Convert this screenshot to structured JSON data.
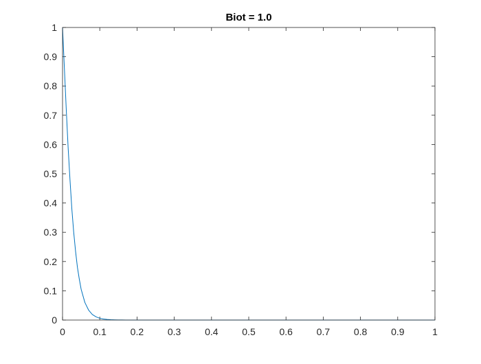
{
  "chart_data": {
    "type": "line",
    "title": "Biot = 1.0",
    "xlabel": "",
    "ylabel": "",
    "xlim": [
      0,
      1
    ],
    "ylim": [
      0,
      1
    ],
    "grid": false,
    "legend": "none",
    "x_ticks": [
      "0",
      "0.1",
      "0.2",
      "0.3",
      "0.4",
      "0.5",
      "0.6",
      "0.7",
      "0.8",
      "0.9",
      "1"
    ],
    "y_ticks": [
      "0",
      "0.1",
      "0.2",
      "0.3",
      "0.4",
      "0.5",
      "0.6",
      "0.7",
      "0.8",
      "0.9",
      "1"
    ],
    "series": [
      {
        "color": "#0072bd",
        "x": [
          0,
          0.005,
          0.01,
          0.015,
          0.02,
          0.025,
          0.03,
          0.035,
          0.04,
          0.045,
          0.05,
          0.06,
          0.07,
          0.08,
          0.09,
          0.1,
          0.11,
          0.12,
          0.13,
          0.14,
          0.15,
          0.16,
          0.17,
          0.18,
          0.2,
          0.25,
          0.3,
          0.4,
          0.5,
          0.6,
          0.7,
          0.8,
          0.9,
          1.0
        ],
        "y": [
          1.0,
          0.86,
          0.72,
          0.59,
          0.48,
          0.38,
          0.3,
          0.235,
          0.18,
          0.14,
          0.105,
          0.06,
          0.034,
          0.019,
          0.011,
          0.006,
          0.0035,
          0.002,
          0.0012,
          0.0007,
          0.0004,
          0.0002,
          0.0001,
          5e-05,
          0.0,
          0.0,
          0.0,
          0.0,
          0.0,
          0.0,
          0.0,
          0.0,
          0.0,
          0.0
        ]
      }
    ]
  },
  "colors": {
    "axes": "#262626",
    "series": "#0072bd",
    "title": "#000000"
  }
}
